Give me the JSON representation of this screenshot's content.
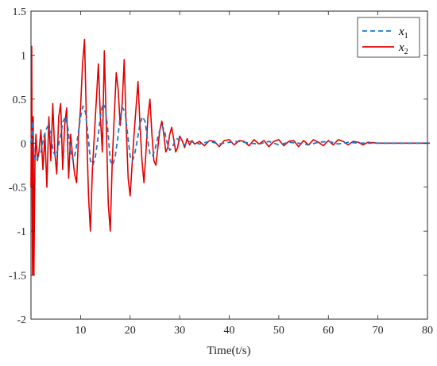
{
  "chart_data": {
    "type": "line",
    "xlabel": "Time(t/s)",
    "ylabel": "",
    "xlim": [
      0,
      80
    ],
    "ylim": [
      -2,
      1.5
    ],
    "xticks": [
      "10",
      "20",
      "30",
      "40",
      "50",
      "60",
      "70",
      "80"
    ],
    "yticks": [
      "1.5",
      "1",
      "0.5",
      "0",
      "-0.5",
      "-1",
      "-1.5",
      "-2"
    ],
    "grid": false,
    "legend_position": "top-right",
    "series": [
      {
        "name": "x1",
        "name_base": "x",
        "name_sub": "1",
        "color": "#1f77c9",
        "style": "dashed",
        "x": [
          0,
          0.3,
          0.6,
          1.0,
          1.5,
          2.0,
          2.5,
          3.0,
          3.5,
          4.0,
          4.5,
          5.0,
          5.5,
          6.0,
          6.5,
          7.0,
          7.5,
          8.0,
          8.5,
          9.0,
          9.5,
          10.0,
          10.5,
          11.0,
          11.5,
          12.0,
          12.5,
          13.0,
          13.5,
          14.0,
          14.5,
          15.0,
          15.5,
          16.0,
          16.5,
          17.0,
          17.5,
          18.0,
          18.5,
          19.0,
          19.5,
          20.0,
          20.5,
          21.0,
          21.5,
          22.0,
          22.5,
          23.0,
          23.5,
          24.0,
          24.5,
          25.0,
          25.5,
          26.0,
          26.5,
          27.0,
          27.5,
          28.0,
          28.5,
          29.0,
          29.5,
          30.0,
          31.0,
          32.0,
          33.0,
          34.0,
          36.0,
          38.0,
          40.0,
          42.0,
          44.0,
          46.0,
          48.0,
          50.0,
          52.0,
          54.0,
          56.0,
          58.0,
          60.0,
          62.0,
          64.0,
          66.0,
          68.0,
          70.0,
          72.0,
          75.0,
          78.0,
          80.5
        ],
        "y": [
          0,
          0.25,
          -0.15,
          -0.2,
          -0.15,
          -0.1,
          0.05,
          0.15,
          0.2,
          0.1,
          -0.1,
          -0.15,
          -0.05,
          0.1,
          0.25,
          0.3,
          0.15,
          -0.1,
          -0.2,
          -0.1,
          0.1,
          0.3,
          0.42,
          0.35,
          0.1,
          -0.2,
          -0.25,
          -0.15,
          0.05,
          0.3,
          0.45,
          0.4,
          0.15,
          -0.2,
          -0.25,
          -0.15,
          0.05,
          0.3,
          0.4,
          0.35,
          0.1,
          -0.15,
          -0.2,
          -0.1,
          0.05,
          0.22,
          0.3,
          0.25,
          0.05,
          -0.12,
          -0.15,
          -0.08,
          0.05,
          0.15,
          0.2,
          0.12,
          0,
          -0.08,
          -0.05,
          0.02,
          0.05,
          0.03,
          -0.02,
          0.02,
          0.01,
          -0.01,
          0.02,
          -0.01,
          0.01,
          0.02,
          0,
          -0.01,
          0.02,
          -0.02,
          0.01,
          0,
          -0.02,
          0.01,
          0.02,
          -0.01,
          0.01,
          0,
          0,
          0,
          0,
          0,
          0,
          0
        ]
      },
      {
        "name": "x2",
        "name_base": "x",
        "name_sub": "2",
        "color": "#e00000",
        "style": "solid",
        "x": [
          0,
          0.15,
          0.3,
          0.45,
          0.6,
          0.8,
          1.0,
          1.3,
          1.6,
          2.0,
          2.4,
          2.8,
          3.2,
          3.6,
          4.0,
          4.4,
          4.8,
          5.2,
          5.6,
          6.0,
          6.4,
          6.8,
          7.2,
          7.6,
          8.0,
          8.4,
          8.8,
          9.2,
          9.6,
          10.0,
          10.4,
          10.8,
          11.2,
          11.6,
          12.0,
          12.4,
          12.8,
          13.2,
          13.6,
          14.0,
          14.4,
          14.8,
          15.2,
          15.6,
          16.0,
          16.4,
          16.8,
          17.2,
          17.6,
          18.0,
          18.4,
          18.8,
          19.2,
          19.6,
          20.0,
          20.4,
          20.8,
          21.2,
          21.6,
          22.0,
          22.4,
          22.8,
          23.2,
          23.6,
          24.0,
          24.4,
          24.8,
          25.2,
          25.6,
          26.0,
          26.4,
          26.8,
          27.2,
          27.6,
          28.0,
          28.4,
          28.8,
          29.2,
          29.6,
          30.0,
          30.5,
          31.0,
          31.5,
          32.0,
          32.5,
          33.0,
          34.0,
          35.0,
          36.0,
          37.0,
          38.0,
          39.0,
          40.0,
          41.0,
          42.0,
          43.0,
          44.0,
          45.0,
          46.0,
          47.0,
          48.0,
          49.0,
          50.0,
          51.0,
          52.0,
          53.0,
          54.0,
          55.0,
          56.0,
          57.0,
          58.0,
          59.0,
          60.0,
          61.0,
          62.0,
          63.0,
          64.0,
          65.0,
          66.0,
          67.0,
          68.0,
          70.0,
          72.0,
          75.0,
          78.0,
          80.5
        ],
        "y": [
          -0.5,
          1.1,
          -1.5,
          0.3,
          -1.5,
          -0.2,
          0.1,
          -0.2,
          -0.1,
          0.15,
          -0.3,
          0.1,
          -0.5,
          0.3,
          -0.2,
          0.45,
          -0.1,
          -0.35,
          0.3,
          0.45,
          -0.3,
          0.2,
          0.4,
          -0.4,
          0.1,
          -0.15,
          -0.35,
          -0.45,
          0.1,
          0.4,
          0.9,
          1.18,
          0.2,
          -0.6,
          -1.0,
          -0.3,
          0.1,
          0.5,
          0.9,
          0.3,
          -0.1,
          1.05,
          0.2,
          -0.7,
          -1.0,
          -0.2,
          0.3,
          0.8,
          0.6,
          0.2,
          0.45,
          0.95,
          0.2,
          -0.4,
          -0.6,
          -0.25,
          0.1,
          0.4,
          0.7,
          0.2,
          -0.2,
          -0.45,
          -0.1,
          0.3,
          0.5,
          0.1,
          -0.2,
          -0.25,
          -0.05,
          0.15,
          0.25,
          0.1,
          -0.1,
          -0.05,
          0.1,
          0.18,
          0.05,
          -0.1,
          -0.05,
          0.08,
          0.03,
          -0.05,
          0.05,
          -0.02,
          0.03,
          -0.01,
          0.02,
          -0.03,
          0.03,
          0.02,
          -0.04,
          0.03,
          0.04,
          -0.02,
          0.03,
          0.02,
          -0.03,
          0.04,
          -0.01,
          0.03,
          -0.04,
          0.02,
          0.04,
          -0.03,
          0.02,
          0.03,
          -0.04,
          0.03,
          -0.02,
          0.04,
          0.01,
          -0.03,
          0.03,
          -0.02,
          0.04,
          0.02,
          -0.02,
          0.02,
          0.01,
          -0.02,
          0.01,
          0,
          0,
          0,
          0,
          0
        ]
      }
    ]
  }
}
